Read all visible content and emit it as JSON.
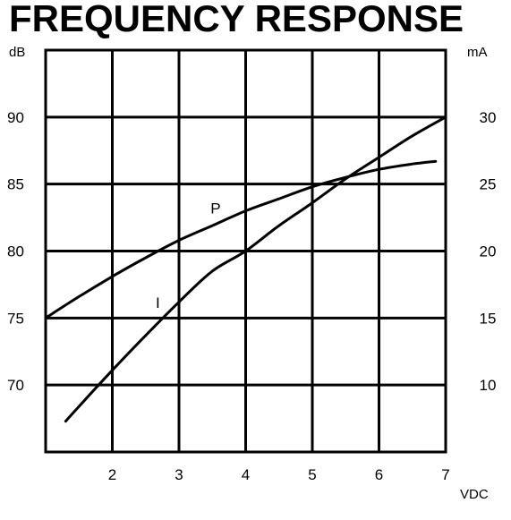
{
  "chart_data": {
    "type": "line",
    "title": "FREQUENCY RESPONSE",
    "xlabel": "VDC",
    "ylabel_left": "dB",
    "ylabel_right": "mA",
    "xlim": [
      1,
      7
    ],
    "ylim_left": [
      65,
      95
    ],
    "ylim_right": [
      5,
      35
    ],
    "x_ticks": [
      2,
      3,
      4,
      5,
      6,
      7
    ],
    "y_ticks_left": [
      70,
      75,
      80,
      85,
      90
    ],
    "y_ticks_right": [
      10,
      15,
      20,
      25,
      30
    ],
    "grid": true,
    "series": [
      {
        "name": "P",
        "axis": "left",
        "x": [
          1.0,
          1.5,
          2.0,
          2.5,
          3.0,
          3.5,
          4.0,
          4.5,
          5.0,
          5.5,
          6.0,
          6.5,
          6.85
        ],
        "y": [
          75.0,
          76.6,
          78.1,
          79.5,
          80.8,
          81.9,
          83.0,
          83.9,
          84.8,
          85.5,
          86.1,
          86.5,
          86.7
        ]
      },
      {
        "name": "I",
        "axis": "right",
        "x": [
          1.3,
          1.5,
          2.0,
          2.5,
          3.0,
          3.5,
          4.0,
          4.5,
          5.0,
          5.5,
          6.0,
          6.5,
          7.0
        ],
        "y": [
          7.3,
          8.4,
          11.1,
          13.7,
          16.2,
          18.5,
          20.0,
          21.9,
          23.6,
          25.4,
          27.0,
          28.6,
          30.0
        ]
      }
    ]
  }
}
